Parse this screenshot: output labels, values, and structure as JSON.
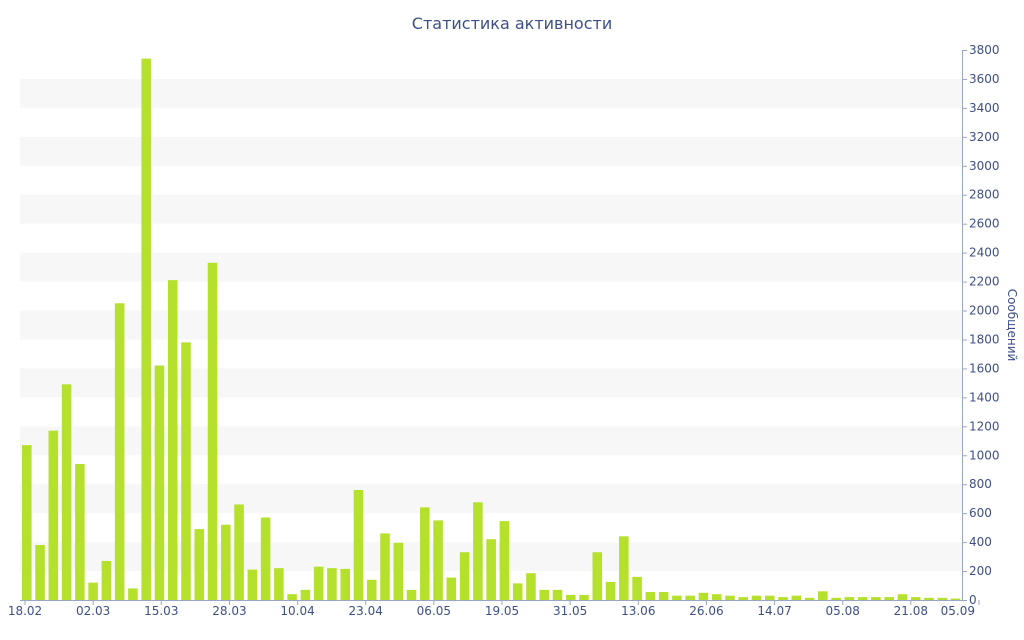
{
  "chart_data": {
    "type": "bar",
    "title": "Статистика активности",
    "xlabel": "",
    "ylabel": "Сообщений",
    "y_axis_position": "right",
    "ylim": [
      0,
      3800
    ],
    "y_ticks": [
      0,
      200,
      400,
      600,
      800,
      1000,
      1200,
      1400,
      1600,
      1800,
      2000,
      2200,
      2400,
      2600,
      2800,
      3000,
      3200,
      3400,
      3600,
      3800
    ],
    "x_tick_labels": [
      "18.02",
      "02.03",
      "15.03",
      "28.03",
      "10.04",
      "23.04",
      "06.05",
      "19.05",
      "31.05",
      "13.06",
      "26.06",
      "14.07",
      "05.08",
      "21.08",
      "05.09"
    ],
    "grid": "alternating horizontal bands",
    "legend": "none",
    "bar_color": "#b5e02c",
    "band_color": "#f7f7f7",
    "text_color": "#3e4f88",
    "series": [
      {
        "values": [
          1070,
          380,
          1170,
          1490,
          940,
          120,
          270,
          2050,
          80,
          3740,
          1620,
          2210,
          1780,
          490,
          2330,
          520,
          660,
          210,
          570,
          220,
          40,
          70,
          230,
          220,
          215,
          760,
          140,
          460,
          395,
          70,
          640,
          550,
          155,
          330,
          675,
          420,
          545,
          115,
          185,
          70,
          70,
          35,
          35,
          330,
          125,
          440,
          160,
          55,
          55,
          30,
          30,
          50,
          40,
          30,
          20,
          30,
          30,
          20,
          30,
          15,
          60,
          15,
          20,
          20,
          20,
          20,
          40,
          20,
          15,
          15,
          10
        ]
      }
    ]
  }
}
